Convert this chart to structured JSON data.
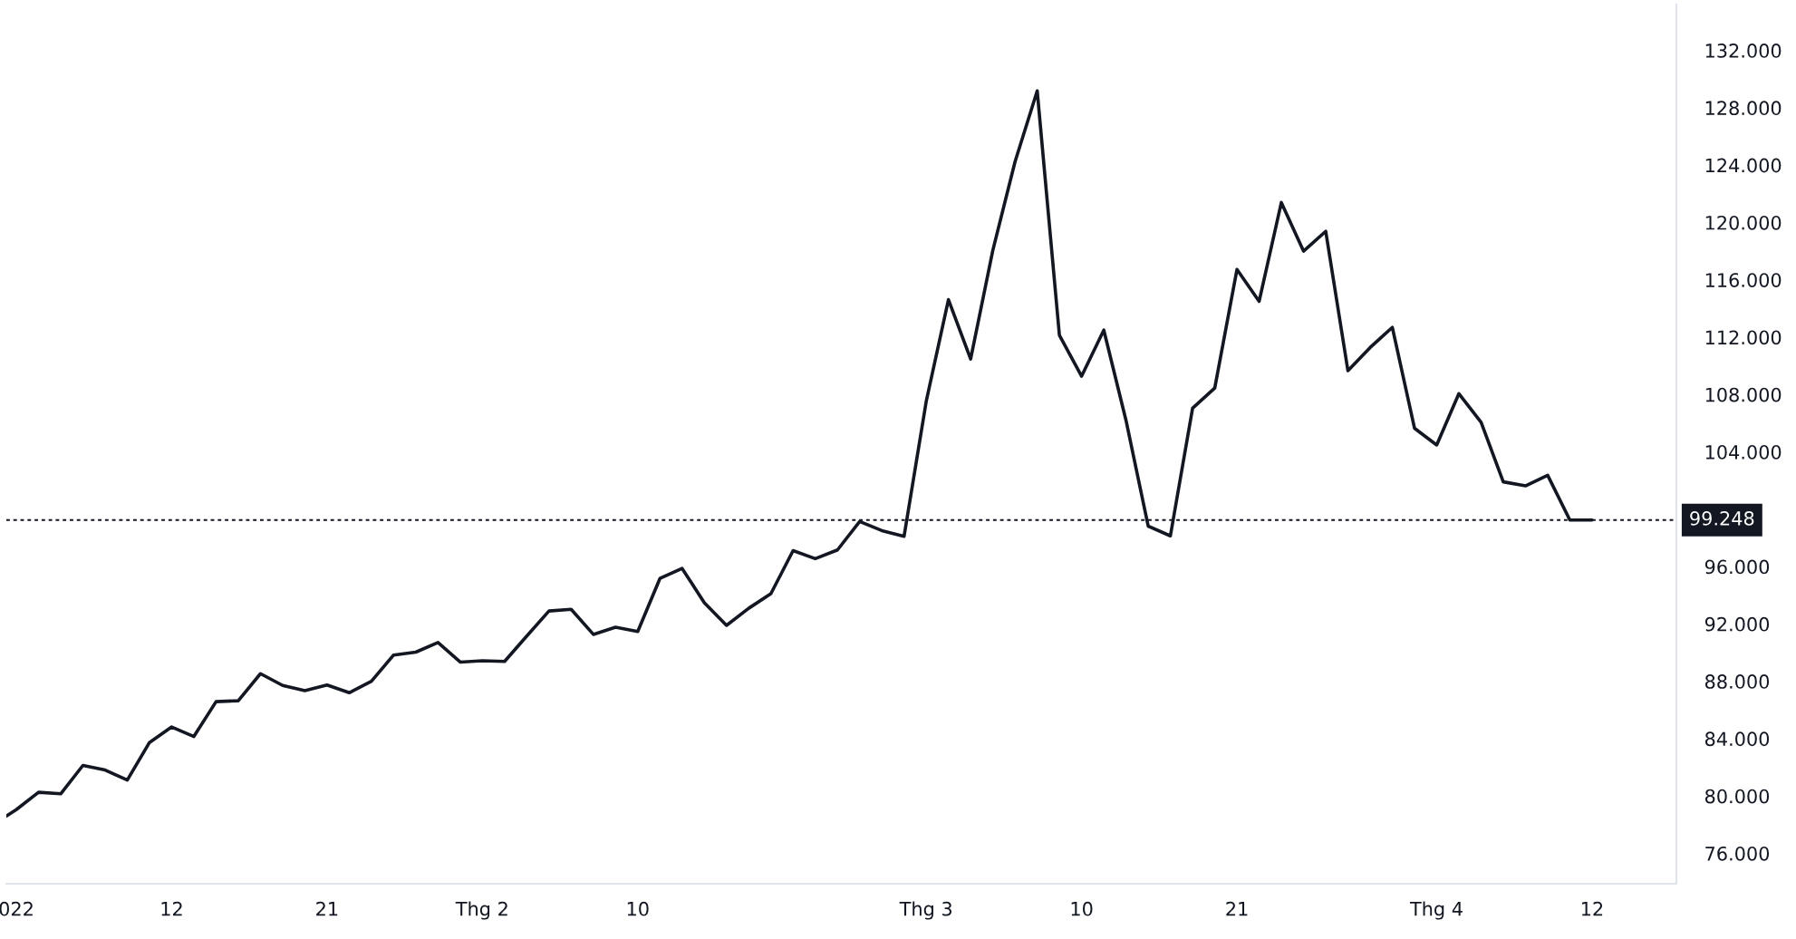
{
  "chart_data": {
    "type": "line",
    "categories": [
      null,
      "022",
      null,
      null,
      null,
      null,
      null,
      null,
      "12",
      null,
      null,
      null,
      null,
      null,
      null,
      "21",
      null,
      null,
      null,
      null,
      null,
      null,
      "Thg 2",
      null,
      null,
      null,
      null,
      null,
      null,
      "10",
      null,
      null,
      null,
      null,
      null,
      null,
      null,
      null,
      null,
      null,
      null,
      null,
      "Thg 3",
      null,
      null,
      null,
      null,
      null,
      null,
      "10",
      null,
      null,
      null,
      null,
      null,
      null,
      "21",
      null,
      null,
      null,
      null,
      null,
      null,
      null,
      null,
      "Thg 4",
      null,
      null,
      null,
      null,
      null,
      null,
      "12"
    ],
    "series": [
      {
        "color": "#131722",
        "values": [
          78.05,
          79.05,
          80.26,
          80.15,
          82.13,
          81.81,
          81.11,
          83.73,
          84.81,
          84.15,
          86.58,
          86.64,
          88.53,
          87.71,
          87.35,
          87.74,
          87.2,
          88.0,
          89.83,
          90.03,
          90.7,
          89.34,
          89.43,
          89.38,
          91.15,
          92.9,
          93.02,
          91.27,
          91.77,
          91.47,
          95.17,
          95.87,
          93.48,
          91.9,
          93.09,
          94.11,
          97.11,
          96.55,
          97.16,
          99.14,
          98.51,
          98.11,
          107.53,
          114.62,
          110.48,
          118.06,
          124.23,
          129.18,
          112.13,
          109.28,
          112.49,
          106.2,
          98.82,
          98.14,
          107.04,
          108.45,
          116.72,
          114.5,
          121.39,
          118.0,
          119.38,
          109.66,
          111.28,
          112.68,
          105.65,
          104.48,
          108.06,
          106.06,
          101.91,
          101.63,
          102.37,
          99.25,
          99.25
        ]
      }
    ],
    "ylim": [
      73.88,
      135.2
    ],
    "yticks": [
      {
        "value": 76,
        "label": "76.000"
      },
      {
        "value": 80,
        "label": "80.000"
      },
      {
        "value": 84,
        "label": "84.000"
      },
      {
        "value": 88,
        "label": "88.000"
      },
      {
        "value": 92,
        "label": "92.000"
      },
      {
        "value": 96,
        "label": "96.000"
      },
      {
        "value": 104,
        "label": "104.000"
      },
      {
        "value": 108,
        "label": "108.000"
      },
      {
        "value": 112,
        "label": "112.000"
      },
      {
        "value": 116,
        "label": "116.000"
      },
      {
        "value": 120,
        "label": "120.000"
      },
      {
        "value": 124,
        "label": "124.000"
      },
      {
        "value": 128,
        "label": "128.000"
      },
      {
        "value": 132,
        "label": "132.000"
      }
    ],
    "ref_lines": [
      {
        "axis": "y",
        "value": 99.248,
        "label": "99.248",
        "color": "#131722",
        "line_style": "dotted"
      }
    ],
    "grid": false,
    "line_style": "solid",
    "marker": "none"
  }
}
